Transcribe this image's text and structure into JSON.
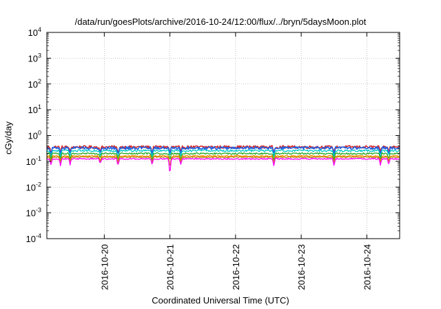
{
  "chart_data": {
    "type": "line",
    "title": "/data/run/goesPlots/archive/2016-10-24/12:00/flux/../bryn/5daysMoon.plot",
    "xlabel": "Coordinated Universal Time (UTC)",
    "ylabel": "cGy/day",
    "y_scale": "log",
    "ylim": [
      0.0001,
      10000
    ],
    "y_ticks": [
      {
        "base": "10",
        "exp": "-4",
        "value": 0.0001
      },
      {
        "base": "10",
        "exp": "-3",
        "value": 0.001
      },
      {
        "base": "10",
        "exp": "-2",
        "value": 0.01
      },
      {
        "base": "10",
        "exp": "-1",
        "value": 0.1
      },
      {
        "base": "10",
        "exp": "0",
        "value": 1
      },
      {
        "base": "10",
        "exp": "1",
        "value": 10
      },
      {
        "base": "10",
        "exp": "2",
        "value": 100
      },
      {
        "base": "10",
        "exp": "3",
        "value": 1000
      },
      {
        "base": "10",
        "exp": "4",
        "value": 10000
      }
    ],
    "xlim": [
      "2016-10-19 03:00",
      "2016-10-24 12:00"
    ],
    "x_ticks": [
      "2016-10-20",
      "2016-10-21",
      "2016-10-22",
      "2016-10-23",
      "2016-10-24"
    ],
    "grid": true,
    "series": [
      {
        "color": "#d62728",
        "level": 0.36,
        "dip": 0.55,
        "noise": 0.25
      },
      {
        "color": "#1f5fe0",
        "level": 0.33,
        "dip": 0.5,
        "noise": 0.25
      },
      {
        "color": "#00c8c8",
        "level": 0.26,
        "dip": 0.55,
        "noise": 0.18
      },
      {
        "color": "#22aa22",
        "level": 0.2,
        "dip": 0.55,
        "noise": 0.14
      },
      {
        "color": "#ff8c00",
        "level": 0.16,
        "dip": 0.55,
        "noise": 0.12
      },
      {
        "color": "#b8860b",
        "level": 0.145,
        "dip": 0.55,
        "noise": 0.1
      },
      {
        "color": "#ff00ff",
        "level": 0.125,
        "dip": 0.45,
        "noise": 0.12
      }
    ],
    "dips": [
      {
        "time": "2016-10-19 04:30",
        "factor": 0.55
      },
      {
        "time": "2016-10-19 08:00",
        "factor": 0.55
      },
      {
        "time": "2016-10-19 11:30",
        "factor": 0.6
      },
      {
        "time": "2016-10-19 22:30",
        "factor": 0.6
      },
      {
        "time": "2016-10-20 05:00",
        "factor": 0.5
      },
      {
        "time": "2016-10-20 17:30",
        "factor": 0.55
      },
      {
        "time": "2016-10-21 00:00",
        "factor": 0.12
      },
      {
        "time": "2016-10-21 04:00",
        "factor": 0.55
      },
      {
        "time": "2016-10-22 14:00",
        "factor": 0.55
      },
      {
        "time": "2016-10-23 12:00",
        "factor": 0.55
      },
      {
        "time": "2016-10-24 05:00",
        "factor": 0.55
      },
      {
        "time": "2016-10-24 08:00",
        "factor": 0.6
      }
    ]
  }
}
